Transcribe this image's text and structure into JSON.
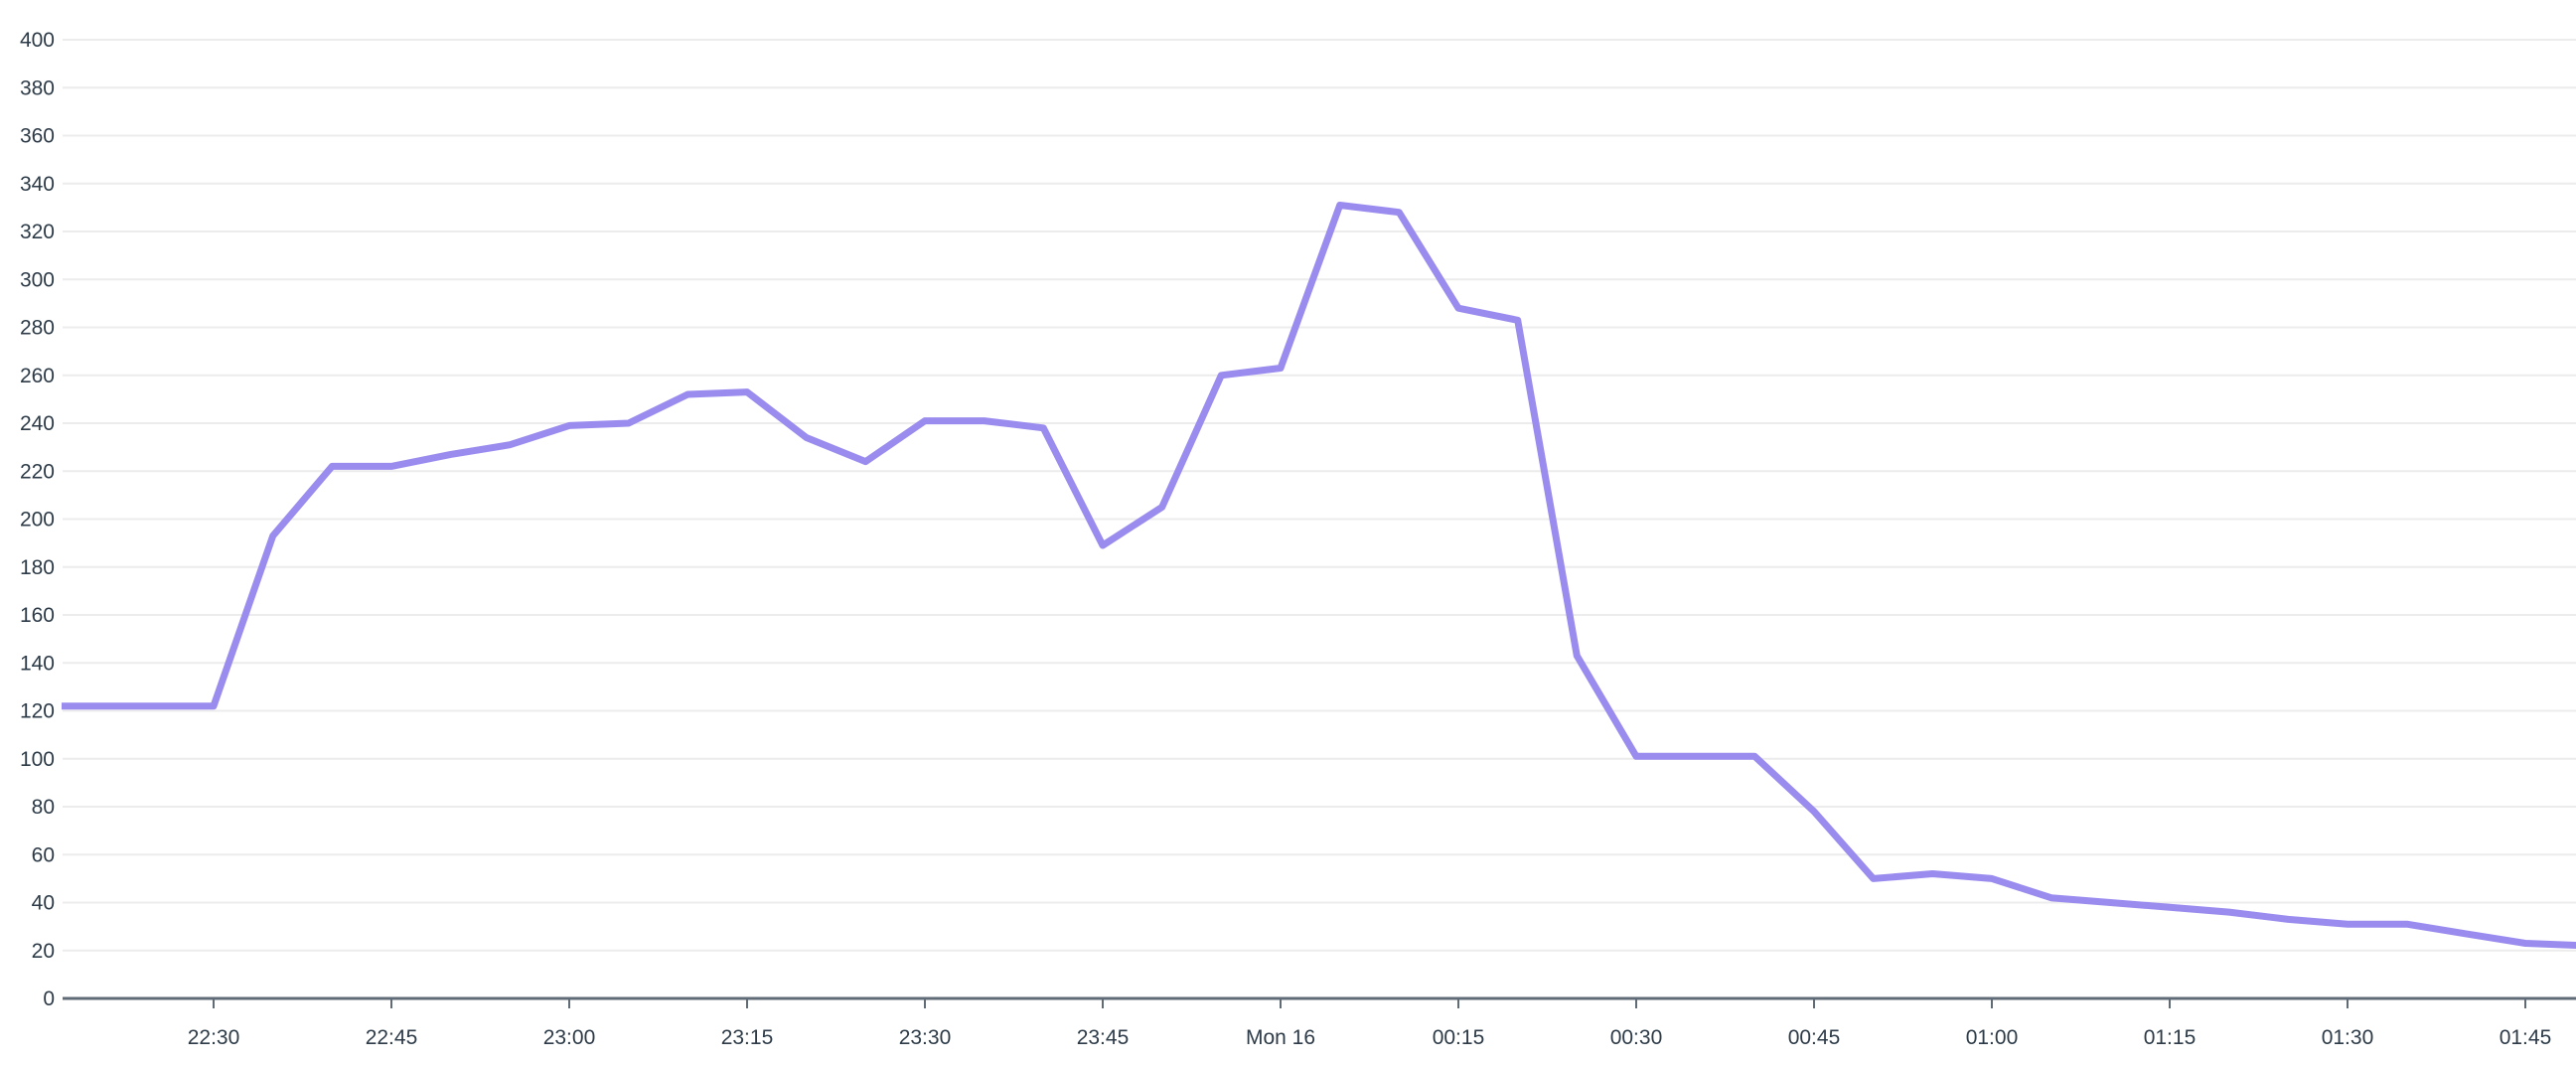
{
  "chart_data": {
    "type": "line",
    "title": "",
    "xlabel": "",
    "ylabel": "",
    "grid": true,
    "legend": "none",
    "ylim": [
      0,
      400
    ],
    "y_axis": {
      "min": 0,
      "max": 400,
      "step": 20,
      "tick_labels": [
        "0",
        "20",
        "40",
        "60",
        "80",
        "100",
        "120",
        "140",
        "160",
        "180",
        "200",
        "220",
        "240",
        "260",
        "280",
        "300",
        "320",
        "340",
        "360",
        "380",
        "400"
      ]
    },
    "x_ticks": [
      {
        "label": "22:30",
        "m": 150
      },
      {
        "label": "22:45",
        "m": 165
      },
      {
        "label": "23:00",
        "m": 180
      },
      {
        "label": "23:15",
        "m": 195
      },
      {
        "label": "23:30",
        "m": 210
      },
      {
        "label": "23:45",
        "m": 225
      },
      {
        "label": "Mon 16",
        "m": 240
      },
      {
        "label": "00:15",
        "m": 255
      },
      {
        "label": "00:30",
        "m": 270
      },
      {
        "label": "00:45",
        "m": 285
      },
      {
        "label": "01:00",
        "m": 300
      },
      {
        "label": "01:15",
        "m": 315
      },
      {
        "label": "01:30",
        "m": 330
      },
      {
        "label": "01:45",
        "m": 345
      }
    ],
    "point_format": [
      "time",
      "minutes_since_22:00",
      "value"
    ],
    "points": [
      [
        "22:15",
        135,
        122
      ],
      [
        "22:20",
        140,
        122
      ],
      [
        "22:25",
        145,
        122
      ],
      [
        "22:30",
        150,
        122
      ],
      [
        "22:35",
        155,
        193
      ],
      [
        "22:40",
        160,
        222
      ],
      [
        "22:45",
        165,
        222
      ],
      [
        "22:50",
        170,
        227
      ],
      [
        "22:55",
        175,
        231
      ],
      [
        "23:00",
        180,
        239
      ],
      [
        "23:05",
        185,
        240
      ],
      [
        "23:10",
        190,
        252
      ],
      [
        "23:15",
        195,
        253
      ],
      [
        "23:20",
        200,
        234
      ],
      [
        "23:25",
        205,
        224
      ],
      [
        "23:30",
        210,
        241
      ],
      [
        "23:35",
        215,
        241
      ],
      [
        "23:40",
        220,
        238
      ],
      [
        "23:45",
        225,
        189
      ],
      [
        "23:50",
        230,
        205
      ],
      [
        "23:55",
        235,
        260
      ],
      [
        "00:00",
        240,
        263
      ],
      [
        "00:05",
        245,
        331
      ],
      [
        "00:10",
        250,
        328
      ],
      [
        "00:15",
        255,
        288
      ],
      [
        "00:20",
        260,
        283
      ],
      [
        "00:25",
        265,
        143
      ],
      [
        "00:30",
        270,
        101
      ],
      [
        "00:35",
        275,
        101
      ],
      [
        "00:40",
        280,
        101
      ],
      [
        "00:45",
        285,
        78
      ],
      [
        "00:50",
        290,
        50
      ],
      [
        "00:55",
        295,
        52
      ],
      [
        "01:00",
        300,
        50
      ],
      [
        "01:05",
        305,
        42
      ],
      [
        "01:10",
        310,
        40
      ],
      [
        "01:15",
        315,
        38
      ],
      [
        "01:20",
        320,
        36
      ],
      [
        "01:25",
        325,
        33
      ],
      [
        "01:30",
        330,
        31
      ],
      [
        "01:35",
        335,
        31
      ],
      [
        "01:40",
        340,
        27
      ],
      [
        "01:45",
        345,
        23
      ],
      [
        "01:50",
        350,
        22
      ]
    ],
    "colors": {
      "line": "#9a8cee",
      "grid": "#ececec",
      "axis": "#5f6b76",
      "tick_label": "#2d3b48"
    }
  }
}
